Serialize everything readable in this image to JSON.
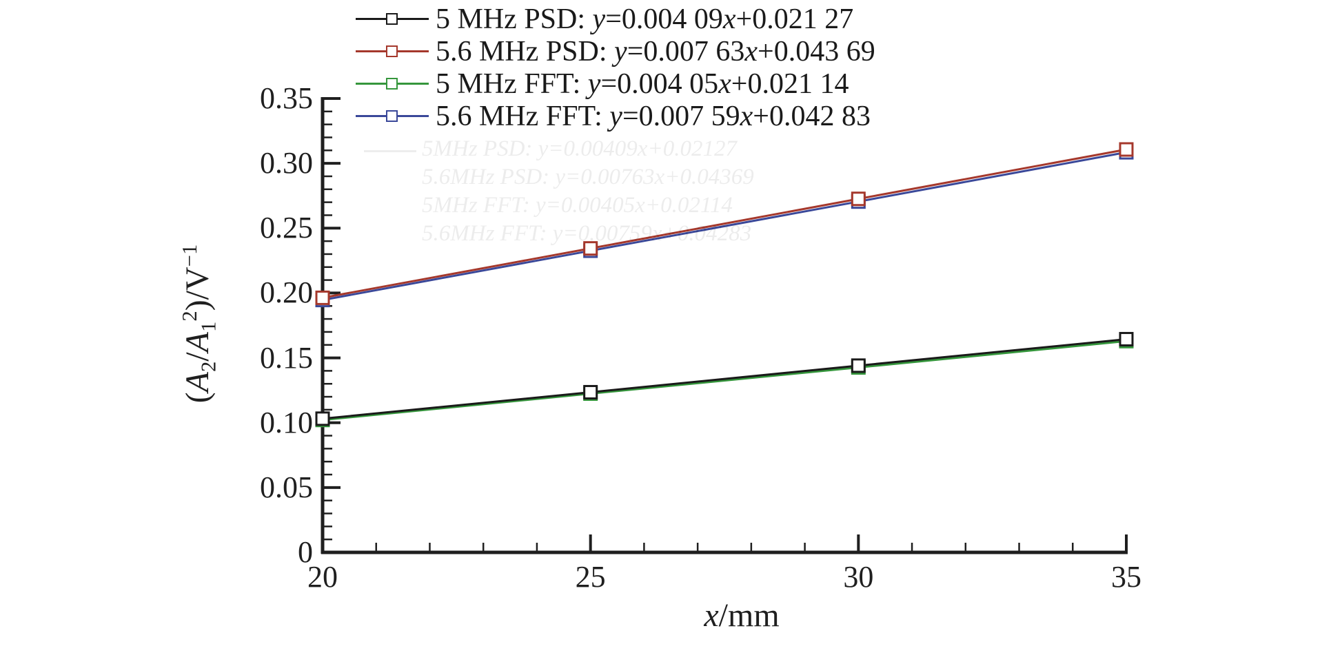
{
  "figure": {
    "background": "#ffffff",
    "axis_color": "#1f1f1f"
  },
  "chart_data": {
    "type": "line",
    "x": [
      20,
      25,
      30,
      35
    ],
    "xlim": [
      20,
      35
    ],
    "ylim": [
      0,
      0.35
    ],
    "grid": false,
    "legend_position": "top-center",
    "marker": "open-square",
    "series": [
      {
        "name": "5 MHz PSD",
        "equation": "y=0.004 09x+0.021 27",
        "color": "#1a1a1a",
        "values": [
          0.1031,
          0.1235,
          0.144,
          0.1644
        ],
        "label_parts": [
          {
            "t": "5 MHz PSD: "
          },
          {
            "t": "y",
            "i": true
          },
          {
            "t": "=0.004 09"
          },
          {
            "t": "x",
            "i": true
          },
          {
            "t": "+0.021 27"
          }
        ]
      },
      {
        "name": "5.6 MHz PSD",
        "equation": "y=0.007 63x+0.043 69",
        "color": "#a5382c",
        "values": [
          0.1963,
          0.2344,
          0.2726,
          0.3107
        ],
        "label_parts": [
          {
            "t": "5.6 MHz PSD: "
          },
          {
            "t": "y",
            "i": true
          },
          {
            "t": "=0.007 63"
          },
          {
            "t": "x",
            "i": true
          },
          {
            "t": "+0.043 69"
          }
        ]
      },
      {
        "name": "5 MHz FFT",
        "equation": "y=0.004 05x+0.021 14",
        "color": "#35963c",
        "values": [
          0.1021,
          0.1224,
          0.1426,
          0.1629
        ],
        "label_parts": [
          {
            "t": "5 MHz FFT: "
          },
          {
            "t": "y",
            "i": true
          },
          {
            "t": "=0.004 05"
          },
          {
            "t": "x",
            "i": true
          },
          {
            "t": "+0.021 14"
          }
        ]
      },
      {
        "name": "5.6 MHz FFT",
        "equation": "y=0.007 59x+0.042 83",
        "color": "#3a4899",
        "values": [
          0.1946,
          0.2326,
          0.2705,
          0.3085
        ],
        "label_parts": [
          {
            "t": "5.6 MHz FFT: "
          },
          {
            "t": "y",
            "i": true
          },
          {
            "t": "=0.007 59"
          },
          {
            "t": "x",
            "i": true
          },
          {
            "t": "+0.042 83"
          }
        ]
      }
    ],
    "x_ticks": {
      "major": [
        20,
        25,
        30,
        35
      ],
      "labels": [
        "20",
        "25",
        "30",
        "35"
      ],
      "minor_step": 1
    },
    "y_ticks": {
      "major": [
        0,
        0.05,
        0.1,
        0.15,
        0.2,
        0.25,
        0.3,
        0.35
      ],
      "labels": [
        "0",
        "0.05",
        "0.10",
        "0.15",
        "0.20",
        "0.25",
        "0.30",
        "0.35"
      ],
      "minor_step": 0.01
    },
    "xlabel": "x/mm",
    "ylabel": "(A2/A1^2)/V^-1",
    "xlabel_parts": [
      {
        "t": "x",
        "i": true
      },
      {
        "t": "/mm"
      }
    ],
    "ylabel_parts": [
      {
        "t": "("
      },
      {
        "t": "A",
        "i": true
      },
      {
        "t": "2",
        "sub": true
      },
      {
        "t": "/"
      },
      {
        "t": "A",
        "i": true
      },
      {
        "t": "1",
        "sub": true
      },
      {
        "t": "2",
        "sup": true
      },
      {
        "t": ")/V"
      },
      {
        "t": "−1",
        "sup": true
      }
    ]
  },
  "watermark": {
    "lines": [
      "5MHz PSD: y=0.00409x+0.02127",
      "5.6MHz PSD: y=0.00763x+0.04369",
      "5MHz FFT: y=0.00405x+0.02114",
      "5.6MHz FFT: y=0.00759x+0.04283"
    ]
  }
}
